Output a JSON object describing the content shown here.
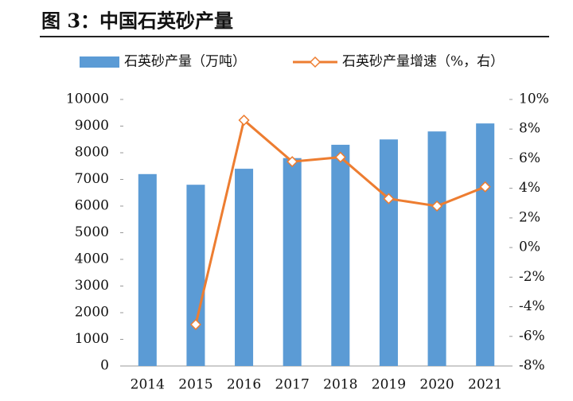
{
  "chart_data": {
    "type": "bar-line",
    "title": "图 3：中国石英砂产量",
    "categories": [
      "2014",
      "2015",
      "2016",
      "2017",
      "2018",
      "2019",
      "2020",
      "2021"
    ],
    "series": [
      {
        "name": "石英砂产量（万吨）",
        "type": "bar",
        "color": "#5b9bd5",
        "values": [
          7200,
          6800,
          7400,
          7800,
          8300,
          8500,
          8800,
          9100
        ]
      },
      {
        "name": "石英砂产量增速（%，右）",
        "type": "line",
        "axis": "y2",
        "color": "#ed7d31",
        "values": [
          null,
          -5.2,
          8.6,
          5.8,
          6.1,
          3.3,
          2.8,
          4.1
        ]
      }
    ],
    "ylim": [
      0,
      10000
    ],
    "yticks": [
      0,
      1000,
      2000,
      3000,
      4000,
      5000,
      6000,
      7000,
      8000,
      9000,
      10000
    ],
    "y2lim": [
      -8,
      10
    ],
    "y2ticks": [
      {
        "value": -8,
        "label": "-8%"
      },
      {
        "value": -6,
        "label": "-6%"
      },
      {
        "value": -4,
        "label": "-4%"
      },
      {
        "value": -2,
        "label": "-2%"
      },
      {
        "value": 0,
        "label": "0%"
      },
      {
        "value": 2,
        "label": "2%"
      },
      {
        "value": 4,
        "label": "4%"
      },
      {
        "value": 6,
        "label": "6%"
      },
      {
        "value": 8,
        "label": "8%"
      },
      {
        "value": 10,
        "label": "10%"
      }
    ],
    "grid": false
  }
}
